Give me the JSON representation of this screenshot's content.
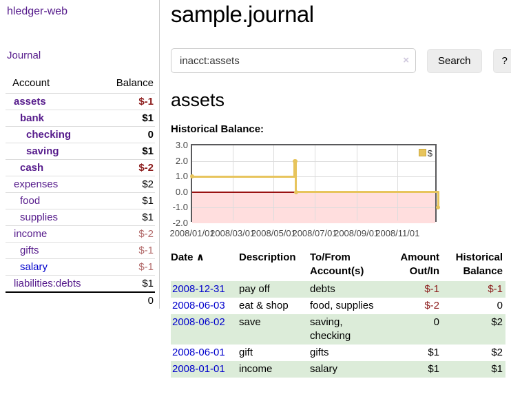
{
  "colors": {
    "purple": "#551a8b",
    "blue": "#0000cc",
    "neg": "#8b1a1a",
    "rose": "#b36b6b",
    "row-green": "#dcecd9",
    "gold": "#e7c45c",
    "gold-border": "#c9a63e",
    "pink": "#ffdede",
    "zero-line": "#991111",
    "grid": "#dcdcdc",
    "plot-border": "#59595b",
    "divider": "#cccccc",
    "btn-bg": "#ededed"
  },
  "app": {
    "brand": "hledger-web"
  },
  "sidebar": {
    "journal_link": "Journal",
    "accounts": {
      "header_account": "Account",
      "header_balance": "Balance",
      "rows": [
        {
          "name": "assets",
          "balance": "$-1"
        },
        {
          "name": "bank",
          "balance": "$1"
        },
        {
          "name": "checking",
          "balance": "0"
        },
        {
          "name": "saving",
          "balance": "$1"
        },
        {
          "name": "cash",
          "balance": "$-2"
        },
        {
          "name": "expenses",
          "balance": "$2"
        },
        {
          "name": "food",
          "balance": "$1"
        },
        {
          "name": "supplies",
          "balance": "$1"
        },
        {
          "name": "income",
          "balance": "$-2"
        },
        {
          "name": "gifts",
          "balance": "$-1"
        },
        {
          "name": "salary",
          "balance": "$-1"
        },
        {
          "name": "liabilities:debts",
          "balance": "$1"
        }
      ],
      "total": "0"
    }
  },
  "header": {
    "title": "sample.journal"
  },
  "search": {
    "value": "inacct:assets",
    "clear_icon": "×",
    "button_label": "Search",
    "help_label": "?"
  },
  "account_page": {
    "heading": "assets",
    "section_label": "Historical Balance:"
  },
  "chart_data": {
    "type": "line",
    "title": "Historical Balance:",
    "step": true,
    "series": [
      {
        "name": "$",
        "points": [
          {
            "date": "2008-01-01",
            "value": 1
          },
          {
            "date": "2008-06-01",
            "value": 2
          },
          {
            "date": "2008-06-02",
            "value": 2
          },
          {
            "date": "2008-06-03",
            "value": 0
          },
          {
            "date": "2008-12-31",
            "value": -1
          }
        ]
      }
    ],
    "x_range": [
      "2008-01-01",
      "2008-12-31"
    ],
    "y_range": [
      -2,
      3
    ],
    "y_ticks": [
      3,
      2,
      1,
      0,
      -1,
      -2
    ],
    "y_tick_labels": [
      "3.0",
      "2.0",
      "1.0",
      "0.0",
      "-1.0",
      "-2.0"
    ],
    "x_ticks": [
      "2008-01-01",
      "2008-03-01",
      "2008-05-01",
      "2008-07-01",
      "2008-09-01",
      "2008-11-01"
    ],
    "x_tick_labels": [
      "2008/01/01",
      "2008/03/01",
      "2008/05/01",
      "2008/07/01",
      "2008/09/01",
      "2008/11/01"
    ],
    "legend": {
      "label": "$",
      "position": "top-right"
    },
    "grid": true,
    "negative_region_shaded": true
  },
  "register": {
    "headers": {
      "date": "Date",
      "sort_indicator": "∧",
      "description": "Description",
      "tofrom_l1": "To/From",
      "tofrom_l2": "Account(s)",
      "amount_l1": "Amount",
      "amount_l2": "Out/In",
      "balance_l1": "Historical",
      "balance_l2": "Balance"
    },
    "rows": [
      {
        "date": "2008-12-31",
        "description": "pay off",
        "accounts": "debts",
        "amount": "$-1",
        "balance": "$-1"
      },
      {
        "date": "2008-06-03",
        "description": "eat & shop",
        "accounts": "food, supplies",
        "amount": "$-2",
        "balance": "0"
      },
      {
        "date": "2008-06-02",
        "description": "save",
        "accounts": "saving, checking",
        "amount": "0",
        "balance": "$2"
      },
      {
        "date": "2008-06-01",
        "description": "gift",
        "accounts": "gifts",
        "amount": "$1",
        "balance": "$2"
      },
      {
        "date": "2008-01-01",
        "description": "income",
        "accounts": "salary",
        "amount": "$1",
        "balance": "$1"
      }
    ]
  }
}
